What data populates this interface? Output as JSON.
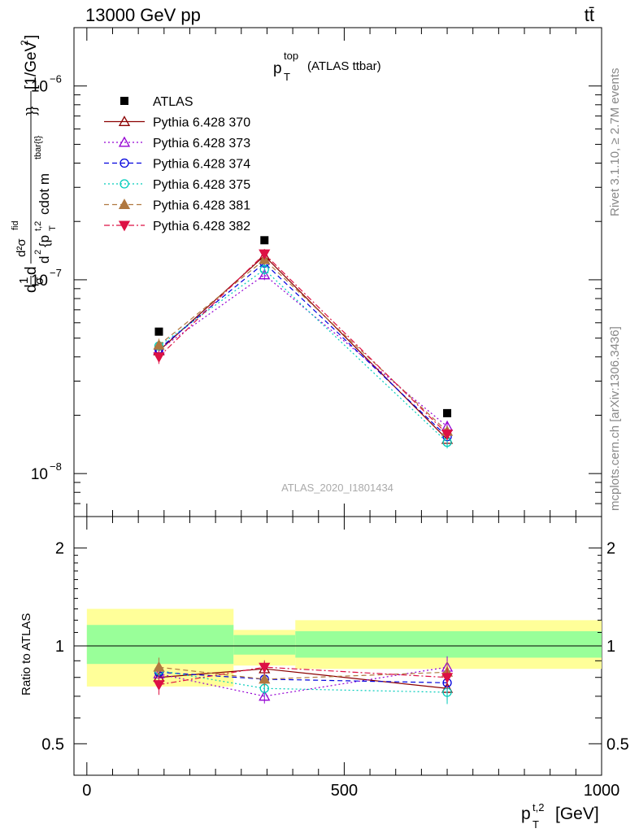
{
  "header": {
    "left": "13000 GeV pp",
    "right": "tt̄"
  },
  "side_text": {
    "rivet": "Rivet 3.1.10, ≥ 2.7M events",
    "mcplots": "mcplots.cern.ch [arXiv:1306.3436]"
  },
  "colors": {
    "ATLAS": "#000000",
    "py370": "#8b0000",
    "py373": "#9400d3",
    "py374": "#0000dd",
    "py375": "#00ccbb",
    "py381": "#b07840",
    "py382": "#dd1144",
    "band_inner": "#99ff99",
    "band_outer": "#ffff99"
  },
  "chart_data": [
    {
      "type": "scatter",
      "title_main": "p",
      "title_sup": "top",
      "title_sub": "T",
      "title_rest": "(ATLAS ttbar)",
      "ylabel": "d²σ^{fid} / d² {p_T^{t,2} cdot m^{tbar{t}}} [1/GeV²]  (1/σ dσ)",
      "ylabel_parts": {
        "frac1_num": "1",
        "frac1_den": "σ",
        "d": "d",
        "num": "d²σ",
        "num_sup": "fid",
        "den_prefix": "d",
        "den_sup": "2",
        "den_body": "{p",
        "den_p_sup": "t,2",
        "den_p_sub": "T",
        "den_rest": "cdot m",
        "den_m_sup": "tbar{t}",
        "den_close": "}}",
        "unit": "[1/GeV",
        "unit_sup": "2",
        "unit_close": "]"
      },
      "y_scale": "log",
      "ylim": [
        6e-09,
        2e-06
      ],
      "xlim": [
        -25,
        1000
      ],
      "y_tick_labels": [
        {
          "value": 1e-08,
          "mantissa": "10",
          "exp": "−8"
        },
        {
          "value": 1e-07,
          "mantissa": "10",
          "exp": "−7"
        },
        {
          "value": 1e-06,
          "mantissa": "10",
          "exp": "−6"
        }
      ],
      "x": [
        140,
        345,
        700
      ],
      "legend_placement": "top-left",
      "series": [
        {
          "name": "ATLAS",
          "key": "ATLAS",
          "marker": "square",
          "line": "none",
          "values": [
            5.4e-08,
            1.6e-07,
            2.05e-08
          ]
        },
        {
          "name": "Pythia 6.428 370",
          "key": "py370",
          "marker": "triangle-up-open",
          "line": "solid",
          "values": [
            4.3e-08,
            1.33e-07,
            1.5e-08
          ]
        },
        {
          "name": "Pythia 6.428 373",
          "key": "py373",
          "marker": "triangle-up-open",
          "line": "dotted",
          "values": [
            4.35e-08,
            1.06e-07,
            1.75e-08
          ]
        },
        {
          "name": "Pythia 6.428 374",
          "key": "py374",
          "marker": "circle-open",
          "line": "dashed",
          "values": [
            4.4e-08,
            1.22e-07,
            1.55e-08
          ]
        },
        {
          "name": "Pythia 6.428 375",
          "key": "py375",
          "marker": "circle-open",
          "line": "dotted",
          "values": [
            4.55e-08,
            1.13e-07,
            1.45e-08
          ]
        },
        {
          "name": "Pythia 6.428 381",
          "key": "py381",
          "marker": "triangle-up-filled",
          "line": "dashed",
          "values": [
            4.6e-08,
            1.27e-07,
            1.65e-08
          ]
        },
        {
          "name": "Pythia 6.428 382",
          "key": "py382",
          "marker": "triangle-down-filled",
          "line": "dashdot",
          "values": [
            4e-08,
            1.36e-07,
            1.6e-08
          ]
        }
      ],
      "watermark": "ATLAS_2020_I1801434"
    },
    {
      "type": "scatter",
      "ylabel": "Ratio to ATLAS",
      "xlabel_main": "p",
      "xlabel_sup": "t,2",
      "xlabel_sub": "T",
      "xlabel_unit": "[GeV]",
      "xlim": [
        -25,
        1000
      ],
      "ylim": [
        0.4,
        2.5
      ],
      "y_scale": "log",
      "y_tick_labels": [
        {
          "value": 0.5,
          "label": "0.5"
        },
        {
          "value": 1,
          "label": "1"
        },
        {
          "value": 2,
          "label": "2"
        }
      ],
      "x_tick_labels": [
        {
          "value": 0,
          "label": "0"
        },
        {
          "value": 500,
          "label": "500"
        },
        {
          "value": 1000,
          "label": "1000"
        }
      ],
      "reference_line": 1,
      "bands": [
        {
          "x0": 0,
          "x1": 285,
          "inner": [
            0.88,
            1.16
          ],
          "outer": [
            0.75,
            1.3
          ]
        },
        {
          "x0": 285,
          "x1": 405,
          "inner": [
            0.94,
            1.08
          ],
          "outer": [
            0.87,
            1.12
          ]
        },
        {
          "x0": 405,
          "x1": 1000,
          "inner": [
            0.92,
            1.11
          ],
          "outer": [
            0.85,
            1.2
          ]
        }
      ],
      "x": [
        140,
        345,
        700
      ],
      "series": [
        {
          "name": "Pythia 6.428 370",
          "key": "py370",
          "marker": "triangle-up-open",
          "line": "solid",
          "values": [
            0.8,
            0.85,
            0.74
          ]
        },
        {
          "name": "Pythia 6.428 373",
          "key": "py373",
          "marker": "triangle-up-open",
          "line": "dotted",
          "values": [
            0.82,
            0.7,
            0.86
          ]
        },
        {
          "name": "Pythia 6.428 374",
          "key": "py374",
          "marker": "circle-open",
          "line": "dashed",
          "values": [
            0.83,
            0.79,
            0.77
          ]
        },
        {
          "name": "Pythia 6.428 375",
          "key": "py375",
          "marker": "circle-open",
          "line": "dotted",
          "values": [
            0.84,
            0.74,
            0.72
          ]
        },
        {
          "name": "Pythia 6.428 381",
          "key": "py381",
          "marker": "triangle-up-filled",
          "line": "dashed",
          "values": [
            0.86,
            0.79,
            0.83
          ]
        },
        {
          "name": "Pythia 6.428 382",
          "key": "py382",
          "marker": "triangle-down-filled",
          "line": "dashdot",
          "values": [
            0.76,
            0.86,
            0.8
          ]
        }
      ]
    }
  ]
}
